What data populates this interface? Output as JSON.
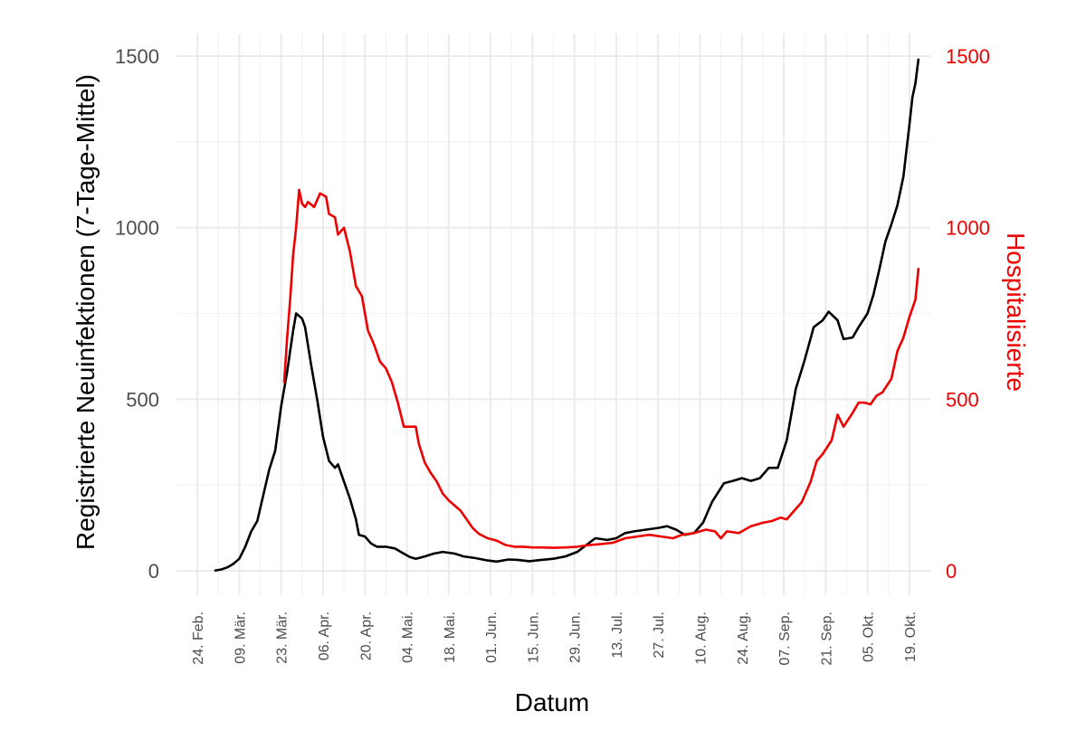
{
  "chart_data": {
    "type": "line",
    "title": "",
    "xlabel": "Datum",
    "ylabel": "Registrierte Neuinfektionen (7-Tage-Mittel)",
    "ylabel_right": "Hospitalisierte",
    "ylim": [
      0,
      1500
    ],
    "ylim_right": [
      0,
      1500
    ],
    "xlim": [
      "2020-02-17",
      "2020-10-26"
    ],
    "grid": true,
    "legend": "none",
    "colors": {
      "primary": "#000000",
      "secondary": "#ee0000"
    },
    "y_ticks": [
      "0",
      "500",
      "1000",
      "1500"
    ],
    "y_ticks_right": [
      "0",
      "500",
      "1000",
      "1500"
    ],
    "x_ticks": [
      {
        "date": "2020-02-24",
        "label": "24. Feb."
      },
      {
        "date": "2020-03-09",
        "label": "09. Mär."
      },
      {
        "date": "2020-03-23",
        "label": "23. Mär."
      },
      {
        "date": "2020-04-06",
        "label": "06. Apr."
      },
      {
        "date": "2020-04-20",
        "label": "20. Apr."
      },
      {
        "date": "2020-05-04",
        "label": "04. Mai."
      },
      {
        "date": "2020-05-18",
        "label": "18. Mai."
      },
      {
        "date": "2020-06-01",
        "label": "01. Jun."
      },
      {
        "date": "2020-06-15",
        "label": "15. Jun."
      },
      {
        "date": "2020-06-29",
        "label": "29. Jun."
      },
      {
        "date": "2020-07-13",
        "label": "13. Jul."
      },
      {
        "date": "2020-07-27",
        "label": "27. Jul."
      },
      {
        "date": "2020-08-10",
        "label": "10. Aug."
      },
      {
        "date": "2020-08-24",
        "label": "24. Aug."
      },
      {
        "date": "2020-09-07",
        "label": "07. Sep."
      },
      {
        "date": "2020-09-21",
        "label": "21. Sep."
      },
      {
        "date": "2020-10-05",
        "label": "05. Okt."
      },
      {
        "date": "2020-10-19",
        "label": "19. Okt."
      }
    ],
    "series": [
      {
        "axis": "left",
        "color": "#000000",
        "points": [
          [
            "2020-03-01",
            1
          ],
          [
            "2020-03-03",
            4
          ],
          [
            "2020-03-05",
            10
          ],
          [
            "2020-03-07",
            20
          ],
          [
            "2020-03-09",
            35
          ],
          [
            "2020-03-11",
            70
          ],
          [
            "2020-03-13",
            115
          ],
          [
            "2020-03-15",
            145
          ],
          [
            "2020-03-17",
            220
          ],
          [
            "2020-03-19",
            295
          ],
          [
            "2020-03-21",
            350
          ],
          [
            "2020-03-23",
            480
          ],
          [
            "2020-03-25",
            580
          ],
          [
            "2020-03-27",
            700
          ],
          [
            "2020-03-28",
            750
          ],
          [
            "2020-03-30",
            735
          ],
          [
            "2020-03-31",
            710
          ],
          [
            "2020-04-02",
            600
          ],
          [
            "2020-04-04",
            500
          ],
          [
            "2020-04-06",
            390
          ],
          [
            "2020-04-08",
            320
          ],
          [
            "2020-04-10",
            300
          ],
          [
            "2020-04-11",
            310
          ],
          [
            "2020-04-13",
            260
          ],
          [
            "2020-04-15",
            210
          ],
          [
            "2020-04-17",
            150
          ],
          [
            "2020-04-18",
            105
          ],
          [
            "2020-04-20",
            100
          ],
          [
            "2020-04-22",
            80
          ],
          [
            "2020-04-24",
            70
          ],
          [
            "2020-04-27",
            70
          ],
          [
            "2020-04-30",
            65
          ],
          [
            "2020-05-02",
            55
          ],
          [
            "2020-05-05",
            40
          ],
          [
            "2020-05-07",
            35
          ],
          [
            "2020-05-10",
            42
          ],
          [
            "2020-05-13",
            50
          ],
          [
            "2020-05-16",
            55
          ],
          [
            "2020-05-20",
            50
          ],
          [
            "2020-05-23",
            42
          ],
          [
            "2020-05-27",
            37
          ],
          [
            "2020-05-31",
            30
          ],
          [
            "2020-06-03",
            27
          ],
          [
            "2020-06-07",
            33
          ],
          [
            "2020-06-10",
            32
          ],
          [
            "2020-06-14",
            28
          ],
          [
            "2020-06-18",
            32
          ],
          [
            "2020-06-22",
            35
          ],
          [
            "2020-06-26",
            42
          ],
          [
            "2020-06-30",
            55
          ],
          [
            "2020-07-03",
            75
          ],
          [
            "2020-07-06",
            95
          ],
          [
            "2020-07-10",
            90
          ],
          [
            "2020-07-13",
            95
          ],
          [
            "2020-07-16",
            110
          ],
          [
            "2020-07-19",
            115
          ],
          [
            "2020-07-23",
            120
          ],
          [
            "2020-07-27",
            125
          ],
          [
            "2020-07-30",
            130
          ],
          [
            "2020-08-02",
            120
          ],
          [
            "2020-08-05",
            105
          ],
          [
            "2020-08-08",
            110
          ],
          [
            "2020-08-11",
            140
          ],
          [
            "2020-08-14",
            200
          ],
          [
            "2020-08-18",
            255
          ],
          [
            "2020-08-21",
            262
          ],
          [
            "2020-08-24",
            270
          ],
          [
            "2020-08-27",
            262
          ],
          [
            "2020-08-30",
            270
          ],
          [
            "2020-09-02",
            300
          ],
          [
            "2020-09-05",
            300
          ],
          [
            "2020-09-08",
            380
          ],
          [
            "2020-09-11",
            530
          ],
          [
            "2020-09-14",
            615
          ],
          [
            "2020-09-17",
            710
          ],
          [
            "2020-09-20",
            730
          ],
          [
            "2020-09-22",
            755
          ],
          [
            "2020-09-25",
            730
          ],
          [
            "2020-09-27",
            675
          ],
          [
            "2020-09-30",
            680
          ],
          [
            "2020-10-02",
            710
          ],
          [
            "2020-10-05",
            750
          ],
          [
            "2020-10-07",
            805
          ],
          [
            "2020-10-09",
            880
          ],
          [
            "2020-10-11",
            960
          ],
          [
            "2020-10-13",
            1010
          ],
          [
            "2020-10-15",
            1065
          ],
          [
            "2020-10-17",
            1150
          ],
          [
            "2020-10-18",
            1225
          ],
          [
            "2020-10-19",
            1300
          ],
          [
            "2020-10-20",
            1380
          ],
          [
            "2020-10-21",
            1420
          ],
          [
            "2020-10-22",
            1490
          ]
        ]
      },
      {
        "axis": "right",
        "color": "#ee0000",
        "points": [
          [
            "2020-03-24",
            550
          ],
          [
            "2020-03-25",
            680
          ],
          [
            "2020-03-26",
            790
          ],
          [
            "2020-03-27",
            920
          ],
          [
            "2020-03-28",
            1000
          ],
          [
            "2020-03-29",
            1110
          ],
          [
            "2020-03-30",
            1070
          ],
          [
            "2020-03-31",
            1060
          ],
          [
            "2020-04-01",
            1075
          ],
          [
            "2020-04-03",
            1060
          ],
          [
            "2020-04-05",
            1100
          ],
          [
            "2020-04-07",
            1090
          ],
          [
            "2020-04-08",
            1040
          ],
          [
            "2020-04-10",
            1030
          ],
          [
            "2020-04-11",
            980
          ],
          [
            "2020-04-13",
            1000
          ],
          [
            "2020-04-15",
            930
          ],
          [
            "2020-04-17",
            830
          ],
          [
            "2020-04-19",
            800
          ],
          [
            "2020-04-21",
            700
          ],
          [
            "2020-04-23",
            660
          ],
          [
            "2020-04-25",
            610
          ],
          [
            "2020-04-27",
            590
          ],
          [
            "2020-04-29",
            550
          ],
          [
            "2020-05-01",
            490
          ],
          [
            "2020-05-03",
            420
          ],
          [
            "2020-05-05",
            420
          ],
          [
            "2020-05-07",
            420
          ],
          [
            "2020-05-08",
            370
          ],
          [
            "2020-05-10",
            315
          ],
          [
            "2020-05-12",
            285
          ],
          [
            "2020-05-14",
            260
          ],
          [
            "2020-05-16",
            225
          ],
          [
            "2020-05-18",
            205
          ],
          [
            "2020-05-20",
            190
          ],
          [
            "2020-05-22",
            175
          ],
          [
            "2020-05-24",
            150
          ],
          [
            "2020-05-26",
            125
          ],
          [
            "2020-05-28",
            108
          ],
          [
            "2020-05-31",
            95
          ],
          [
            "2020-06-03",
            88
          ],
          [
            "2020-06-06",
            75
          ],
          [
            "2020-06-09",
            70
          ],
          [
            "2020-06-12",
            70
          ],
          [
            "2020-06-15",
            68
          ],
          [
            "2020-06-18",
            68
          ],
          [
            "2020-06-22",
            67
          ],
          [
            "2020-06-26",
            68
          ],
          [
            "2020-06-30",
            70
          ],
          [
            "2020-07-04",
            75
          ],
          [
            "2020-07-08",
            78
          ],
          [
            "2020-07-12",
            82
          ],
          [
            "2020-07-16",
            95
          ],
          [
            "2020-07-20",
            100
          ],
          [
            "2020-07-24",
            105
          ],
          [
            "2020-07-28",
            100
          ],
          [
            "2020-08-01",
            95
          ],
          [
            "2020-08-04",
            105
          ],
          [
            "2020-08-08",
            110
          ],
          [
            "2020-08-12",
            120
          ],
          [
            "2020-08-15",
            115
          ],
          [
            "2020-08-17",
            95
          ],
          [
            "2020-08-19",
            115
          ],
          [
            "2020-08-23",
            110
          ],
          [
            "2020-08-27",
            130
          ],
          [
            "2020-08-31",
            140
          ],
          [
            "2020-09-03",
            145
          ],
          [
            "2020-09-06",
            155
          ],
          [
            "2020-09-08",
            150
          ],
          [
            "2020-09-10",
            170
          ],
          [
            "2020-09-13",
            200
          ],
          [
            "2020-09-16",
            260
          ],
          [
            "2020-09-18",
            320
          ],
          [
            "2020-09-20",
            340
          ],
          [
            "2020-09-23",
            380
          ],
          [
            "2020-09-25",
            455
          ],
          [
            "2020-09-27",
            420
          ],
          [
            "2020-09-30",
            460
          ],
          [
            "2020-10-02",
            490
          ],
          [
            "2020-10-04",
            490
          ],
          [
            "2020-10-06",
            485
          ],
          [
            "2020-10-08",
            510
          ],
          [
            "2020-10-10",
            520
          ],
          [
            "2020-10-13",
            560
          ],
          [
            "2020-10-15",
            640
          ],
          [
            "2020-10-17",
            680
          ],
          [
            "2020-10-19",
            740
          ],
          [
            "2020-10-21",
            790
          ],
          [
            "2020-10-22",
            880
          ]
        ]
      }
    ]
  }
}
